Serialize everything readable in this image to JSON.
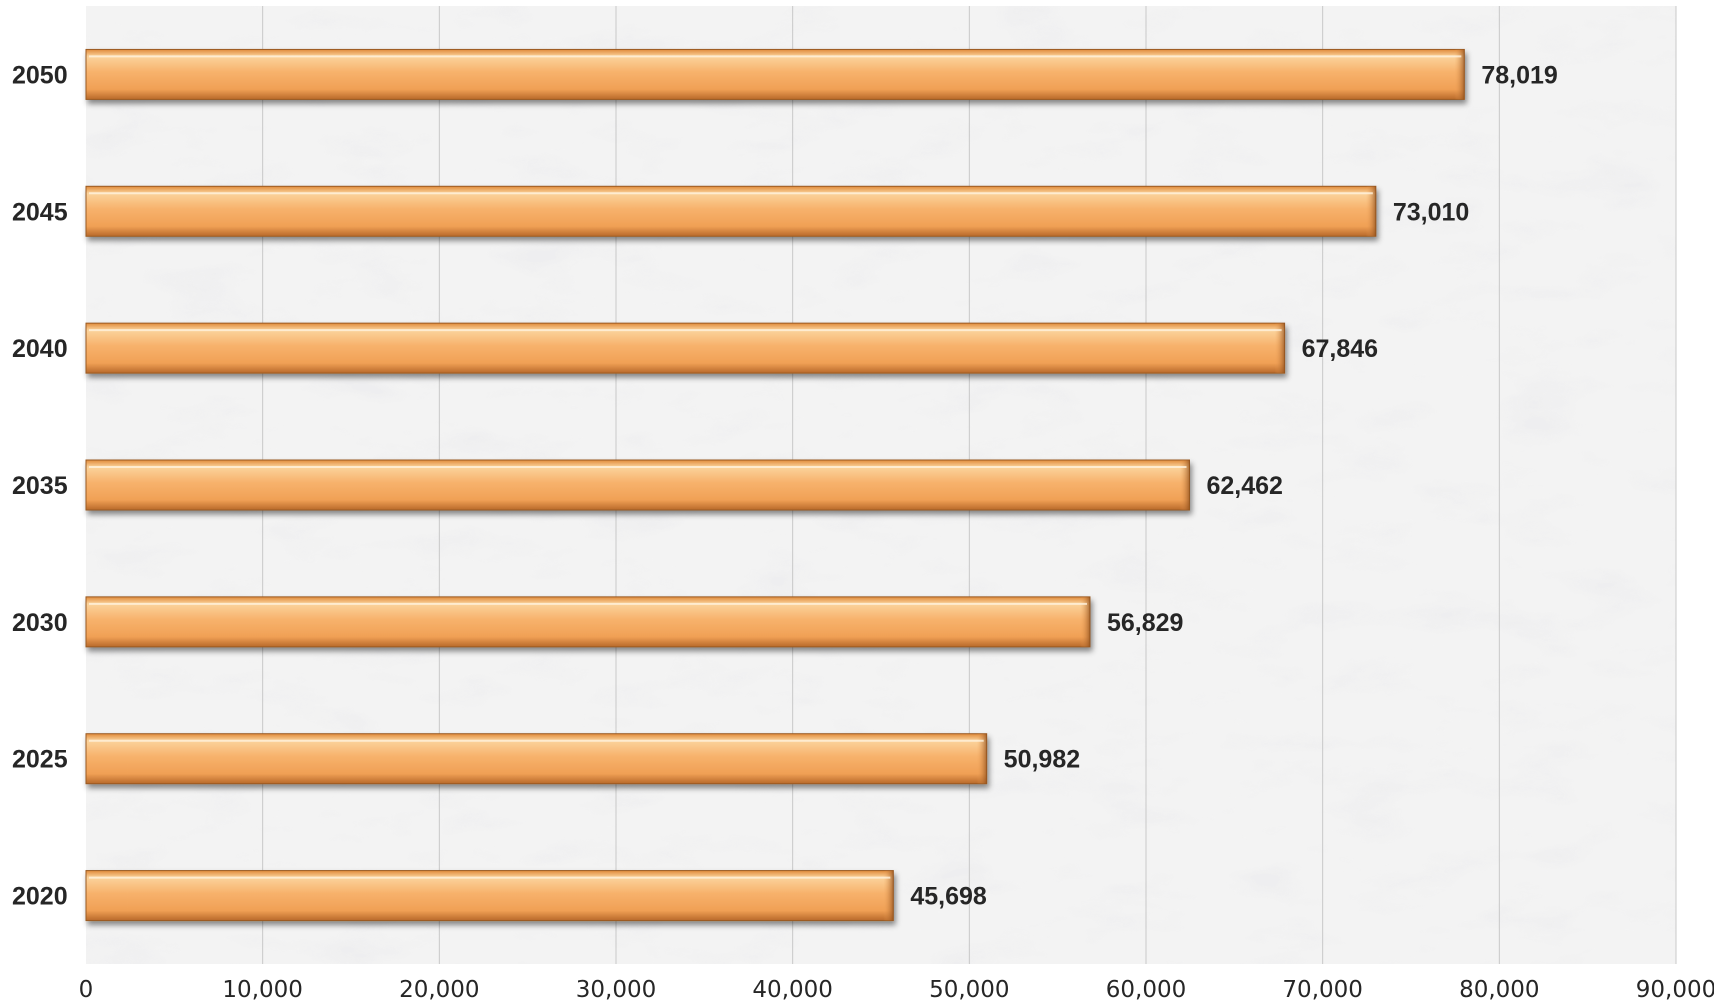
{
  "chart_data": {
    "type": "bar",
    "orientation": "horizontal",
    "categories": [
      "2050",
      "2045",
      "2040",
      "2035",
      "2030",
      "2025",
      "2020"
    ],
    "values": [
      78019,
      73010,
      67846,
      62462,
      56829,
      50982,
      45698
    ],
    "value_labels": [
      "78,019",
      "73,010",
      "67,846",
      "62,462",
      "56,829",
      "50,982",
      "45,698"
    ],
    "xlim": [
      0,
      90000
    ],
    "x_ticks": [
      0,
      10000,
      20000,
      30000,
      40000,
      50000,
      60000,
      70000,
      80000,
      90000
    ],
    "x_tick_labels": [
      "0",
      "10,000",
      "20,000",
      "30,000",
      "40,000",
      "50,000",
      "60,000",
      "70,000",
      "80,000",
      "90,000"
    ],
    "grid": true,
    "title": "",
    "xlabel": "",
    "ylabel": "",
    "bar_color": "#f5a55a",
    "background": "marble-texture"
  }
}
